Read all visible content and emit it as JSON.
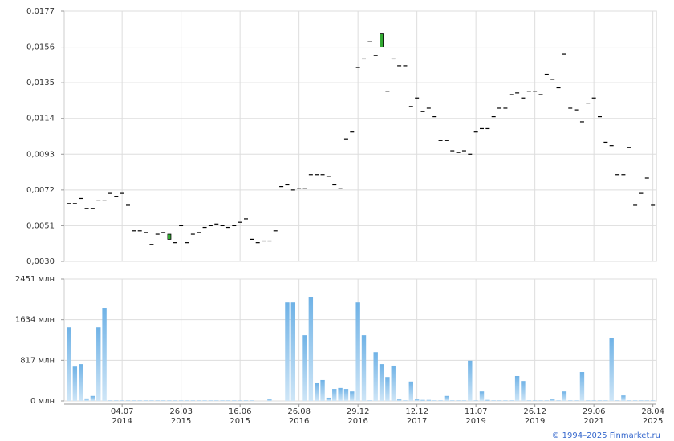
{
  "chart_data": [
    {
      "type": "candlestick",
      "open": [
        0.0064,
        0.0064,
        0.0067,
        0.0061,
        0.0061,
        0.0066,
        0.0066,
        0.007,
        0.0068,
        0.007,
        0.0063,
        0.0048,
        0.0048,
        0.0047,
        0.004,
        0.0046,
        0.0047,
        0.0043,
        0.0041,
        0.0051,
        0.0041,
        0.0046,
        0.0047,
        0.005,
        0.0051,
        0.0052,
        0.0051,
        0.005,
        0.0051,
        0.0053,
        0.0055,
        0.0043,
        0.0041,
        0.0042,
        0.0042,
        0.0048,
        0.0074,
        0.0075,
        0.0072,
        0.0073,
        0.0073,
        0.0081,
        0.0081,
        0.0081,
        0.008,
        0.0075,
        0.0073,
        0.0102,
        0.0106,
        0.0144,
        0.0149,
        0.0159,
        0.0151,
        0.0156,
        0.013,
        0.0149,
        0.0145,
        0.0145,
        0.0121,
        0.0126,
        0.0118,
        0.012,
        0.0115,
        0.0101,
        0.0101,
        0.0095,
        0.0094,
        0.0095,
        0.0093,
        0.0106,
        0.0108,
        0.0108,
        0.0115,
        0.012,
        0.012,
        0.0128,
        0.0129,
        0.0126,
        0.013,
        0.013,
        0.0128,
        0.014,
        0.0137,
        0.0132,
        0.0152,
        0.012,
        0.0119,
        0.0112,
        0.0123,
        0.0126,
        0.0115,
        0.01,
        0.0098,
        0.0081,
        0.0081,
        0.0097,
        0.0063,
        0.007,
        0.0079,
        0.0063
      ],
      "close": [
        0.0064,
        0.0064,
        0.0067,
        0.0061,
        0.0061,
        0.0066,
        0.0066,
        0.007,
        0.0068,
        0.007,
        0.0063,
        0.0048,
        0.0048,
        0.0047,
        0.004,
        0.0046,
        0.0047,
        0.0046,
        0.0041,
        0.0051,
        0.0041,
        0.0046,
        0.0047,
        0.005,
        0.0051,
        0.0052,
        0.0051,
        0.005,
        0.0051,
        0.0053,
        0.0055,
        0.0043,
        0.0041,
        0.0042,
        0.0042,
        0.0048,
        0.0074,
        0.0075,
        0.0072,
        0.0073,
        0.0073,
        0.0081,
        0.0081,
        0.0081,
        0.008,
        0.0075,
        0.0073,
        0.0102,
        0.0106,
        0.0144,
        0.0149,
        0.0159,
        0.0151,
        0.0164,
        0.013,
        0.0149,
        0.0145,
        0.0145,
        0.0121,
        0.0126,
        0.0118,
        0.012,
        0.0115,
        0.0101,
        0.0101,
        0.0095,
        0.0094,
        0.0095,
        0.0093,
        0.0106,
        0.0108,
        0.0108,
        0.0115,
        0.012,
        0.012,
        0.0128,
        0.0129,
        0.0126,
        0.013,
        0.013,
        0.0128,
        0.014,
        0.0137,
        0.0132,
        0.0152,
        0.012,
        0.0119,
        0.0112,
        0.0123,
        0.0126,
        0.0115,
        0.01,
        0.0098,
        0.0081,
        0.0081,
        0.0097,
        0.0063,
        0.007,
        0.0079,
        0.0063
      ],
      "up_color": "#33aa33",
      "ylim": [
        0.003,
        0.0177
      ],
      "yticks": [
        {
          "value": 0.003,
          "label": "0,0030"
        },
        {
          "value": 0.0051,
          "label": "0,0051"
        },
        {
          "value": 0.0072,
          "label": "0,0072"
        },
        {
          "value": 0.0093,
          "label": "0,0093"
        },
        {
          "value": 0.0114,
          "label": "0,0114"
        },
        {
          "value": 0.0135,
          "label": "0,0135"
        },
        {
          "value": 0.0156,
          "label": "0,0156"
        },
        {
          "value": 0.0177,
          "label": "0,0177"
        }
      ],
      "grid": true
    },
    {
      "type": "bar",
      "categories": [
        null,
        null,
        null,
        null,
        null,
        null,
        null,
        null,
        null,
        [
          "04.07",
          "2014"
        ],
        null,
        null,
        null,
        null,
        null,
        null,
        null,
        null,
        null,
        [
          "26.03",
          "2015"
        ],
        null,
        null,
        null,
        null,
        null,
        null,
        null,
        null,
        null,
        [
          "16.06",
          "2015"
        ],
        null,
        null,
        null,
        null,
        null,
        null,
        null,
        null,
        null,
        [
          "26.08",
          "2016"
        ],
        null,
        null,
        null,
        null,
        null,
        null,
        null,
        null,
        null,
        [
          "29.12",
          "2016"
        ],
        null,
        null,
        null,
        null,
        null,
        null,
        null,
        null,
        null,
        [
          "12.12",
          "2017"
        ],
        null,
        null,
        null,
        null,
        null,
        null,
        null,
        null,
        null,
        [
          "11.07",
          "2019"
        ],
        null,
        null,
        null,
        null,
        null,
        null,
        null,
        null,
        null,
        [
          "26.12",
          "2019"
        ],
        null,
        null,
        null,
        null,
        null,
        null,
        null,
        null,
        null,
        [
          "29.06",
          "2021"
        ],
        null,
        null,
        null,
        null,
        null,
        null,
        null,
        null,
        null,
        [
          "28.04",
          "2025"
        ]
      ],
      "values": [
        1480,
        690,
        740,
        50,
        100,
        1480,
        1870,
        10,
        10,
        10,
        10,
        10,
        10,
        10,
        10,
        10,
        10,
        10,
        10,
        10,
        10,
        10,
        10,
        10,
        10,
        10,
        10,
        10,
        10,
        10,
        10,
        10,
        0,
        0,
        30,
        0,
        0,
        1980,
        1980,
        0,
        1320,
        2080,
        355,
        420,
        65,
        240,
        260,
        240,
        190,
        1980,
        1320,
        10,
        980,
        740,
        480,
        710,
        30,
        10,
        390,
        30,
        20,
        20,
        10,
        10,
        100,
        10,
        10,
        10,
        810,
        10,
        190,
        20,
        10,
        10,
        10,
        10,
        500,
        400,
        10,
        10,
        10,
        10,
        30,
        10,
        190,
        10,
        10,
        580,
        10,
        10,
        10,
        10,
        1270,
        10,
        110,
        10,
        10,
        10,
        10,
        10
      ],
      "color": "#7ab9e8",
      "ylim": [
        0,
        2451
      ],
      "yticks": [
        {
          "value": 0,
          "label": "0 млн"
        },
        {
          "value": 817,
          "label": "817 млн"
        },
        {
          "value": 1634,
          "label": "1634 млн"
        },
        {
          "value": 2451,
          "label": "2451 млн"
        }
      ],
      "grid": true
    }
  ],
  "footer": "© 1994–2025 Finmarket.ru"
}
